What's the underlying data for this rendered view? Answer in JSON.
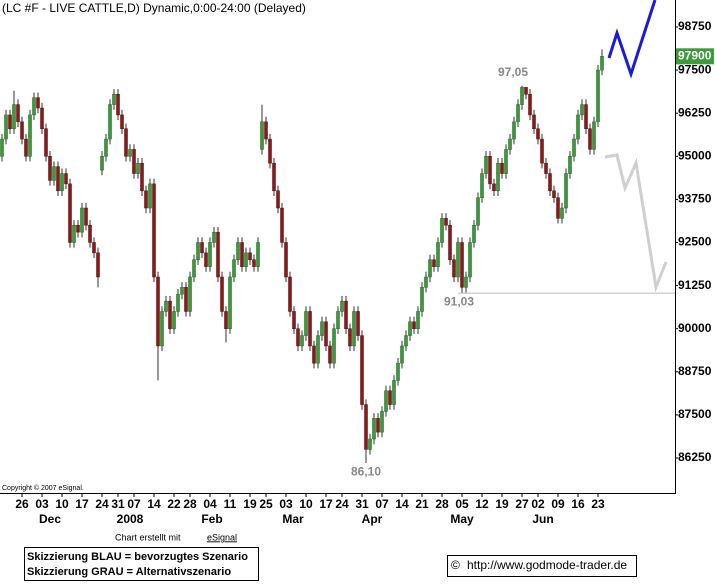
{
  "chart_data": {
    "type": "candlestick",
    "title": "(LC #F - LIVE CATTLE,D) Dynamic,0:00-24:00 (Delayed)",
    "up_color": "#3c9a3c",
    "down_color": "#8b1a1a",
    "xlim": [
      -0.5,
      168.25
    ],
    "ylim": [
      85235,
      99533
    ],
    "yticks": [
      86250,
      87500,
      88750,
      90000,
      91250,
      92500,
      93750,
      95000,
      96250,
      97500,
      98750
    ],
    "xticks": [
      {
        "value": 5,
        "label": "26"
      },
      {
        "value": 10,
        "label": "03"
      },
      {
        "value": 15,
        "label": "10"
      },
      {
        "value": 20,
        "label": "17"
      },
      {
        "value": 25,
        "label": "24"
      },
      {
        "value": 29,
        "label": "31"
      },
      {
        "value": 33,
        "label": "07"
      },
      {
        "value": 38,
        "label": "14"
      },
      {
        "value": 43,
        "label": "22"
      },
      {
        "value": 47,
        "label": "28"
      },
      {
        "value": 52,
        "label": "04"
      },
      {
        "value": 57,
        "label": "11"
      },
      {
        "value": 62,
        "label": "19"
      },
      {
        "value": 66,
        "label": "25"
      },
      {
        "value": 71,
        "label": "03"
      },
      {
        "value": 76,
        "label": "10"
      },
      {
        "value": 81,
        "label": "17"
      },
      {
        "value": 85,
        "label": "24"
      },
      {
        "value": 90,
        "label": "31"
      },
      {
        "value": 95,
        "label": "07"
      },
      {
        "value": 100,
        "label": "14"
      },
      {
        "value": 105,
        "label": "21"
      },
      {
        "value": 110,
        "label": "28"
      },
      {
        "value": 115,
        "label": "05"
      },
      {
        "value": 120,
        "label": "12"
      },
      {
        "value": 125,
        "label": "19"
      },
      {
        "value": 130,
        "label": "27"
      },
      {
        "value": 134,
        "label": "02"
      },
      {
        "value": 139,
        "label": "09"
      },
      {
        "value": 144,
        "label": "16"
      },
      {
        "value": 149,
        "label": "23"
      }
    ],
    "month_labels": [
      "Dec",
      "2008",
      "Feb",
      "Mar",
      "Apr",
      "May",
      "Jun"
    ],
    "open": [
      95000,
      95500,
      96200,
      95800,
      96500,
      96000,
      95500,
      95000,
      96200,
      96700,
      96400,
      95800,
      95000,
      94300,
      94700,
      94000,
      94500,
      94200,
      92500,
      93000,
      92800,
      93500,
      93000,
      92500,
      92200,
      94600,
      95000,
      95500,
      96500,
      96800,
      96200,
      95800,
      95000,
      95200,
      94500,
      94800,
      94000,
      93500,
      94200,
      91500,
      89500,
      90500,
      90800,
      90000,
      90500,
      91000,
      91200,
      90500,
      91500,
      92000,
      92500,
      92200,
      91800,
      92500,
      92800,
      91500,
      90500,
      90000,
      91500,
      92000,
      92500,
      91800,
      92200,
      92000,
      91800,
      95200,
      96000,
      95500,
      94800,
      94000,
      93500,
      92500,
      91500,
      90500,
      90000,
      89500,
      89800,
      90500,
      89500,
      89000,
      89800,
      90200,
      89500,
      89000,
      90000,
      90500,
      90800,
      90000,
      89500,
      90500,
      89800,
      87800,
      86500,
      86800,
      87400,
      87000,
      87600,
      88200,
      87800,
      88500,
      89000,
      89500,
      89800,
      90200,
      90000,
      90500,
      91200,
      91500,
      92000,
      91800,
      92500,
      93200,
      93000,
      92000,
      91500,
      92500,
      91200,
      91500,
      92500,
      93000,
      93800,
      94500,
      95000,
      94200,
      94000,
      94800,
      94500,
      95200,
      95500,
      96000,
      96500,
      97000,
      96800,
      96200,
      95800,
      95500,
      94800,
      94500,
      94000,
      93800,
      93200,
      93500,
      94500,
      95000,
      95500,
      96200,
      96500,
      95800,
      95200,
      96000,
      97500
    ],
    "high": [
      95650,
      96350,
      96350,
      96900,
      96650,
      96150,
      95650,
      96350,
      96850,
      96850,
      96550,
      95950,
      95150,
      94850,
      94850,
      94650,
      94650,
      94350,
      93150,
      93150,
      93650,
      93650,
      93150,
      92650,
      92350,
      95150,
      95650,
      96650,
      96950,
      96950,
      96350,
      95950,
      95350,
      95350,
      94950,
      94950,
      94150,
      94350,
      94350,
      91650,
      90650,
      90950,
      90950,
      90650,
      91150,
      91350,
      91350,
      91650,
      92150,
      92650,
      92650,
      92350,
      92650,
      92950,
      92950,
      91650,
      90650,
      91650,
      92150,
      92650,
      92650,
      92350,
      92350,
      92150,
      92650,
      96500,
      96150,
      95650,
      94950,
      94150,
      93650,
      92650,
      91650,
      90650,
      90150,
      89950,
      90650,
      90650,
      89650,
      89950,
      90350,
      90350,
      89650,
      90150,
      90650,
      90950,
      90950,
      90150,
      90650,
      90650,
      89950,
      87950,
      86950,
      87550,
      87550,
      87750,
      88350,
      88350,
      88650,
      89150,
      89650,
      89950,
      90350,
      90350,
      90650,
      91350,
      91650,
      92150,
      92150,
      92650,
      93350,
      93350,
      93150,
      92150,
      92650,
      92650,
      91650,
      92650,
      93150,
      93950,
      94650,
      95150,
      95150,
      94350,
      94950,
      94950,
      95350,
      95650,
      96150,
      96650,
      97050,
      96950,
      96950,
      96350,
      95950,
      95650,
      94950,
      94650,
      94150,
      93950,
      93650,
      94650,
      95150,
      95650,
      96350,
      96650,
      96650,
      95950,
      96150,
      97650,
      98100
    ],
    "low": [
      94850,
      95350,
      95650,
      95650,
      95850,
      95350,
      94850,
      94850,
      96050,
      96250,
      95650,
      94850,
      94150,
      94150,
      93850,
      93850,
      94050,
      92350,
      92350,
      92650,
      92650,
      92850,
      92350,
      92050,
      91200,
      94450,
      94850,
      95350,
      96350,
      96050,
      95650,
      94850,
      94850,
      94350,
      94350,
      93850,
      93350,
      93350,
      91350,
      88500,
      89350,
      90350,
      89850,
      89850,
      90350,
      90850,
      90350,
      90350,
      91350,
      91850,
      92050,
      91650,
      91650,
      92350,
      91350,
      90350,
      89600,
      89850,
      91350,
      91850,
      91650,
      91650,
      91850,
      91650,
      91650,
      95050,
      95350,
      94650,
      93850,
      93350,
      92350,
      91350,
      90350,
      89850,
      89350,
      89350,
      89650,
      89350,
      88850,
      88850,
      89650,
      89350,
      88850,
      88850,
      89850,
      90350,
      89850,
      89350,
      89350,
      89650,
      87650,
      86100,
      86350,
      86650,
      86850,
      86850,
      87450,
      87650,
      87650,
      88350,
      88850,
      89350,
      89650,
      89850,
      89850,
      90350,
      91050,
      91350,
      91650,
      91650,
      92350,
      92850,
      91850,
      91350,
      91350,
      91030,
      91050,
      91350,
      92350,
      92850,
      93650,
      94350,
      94050,
      93850,
      93850,
      94350,
      94350,
      95050,
      95350,
      95850,
      96350,
      96650,
      96050,
      95650,
      95350,
      94650,
      94350,
      93850,
      93650,
      93050,
      93050,
      93350,
      94350,
      94850,
      95350,
      96050,
      95650,
      95050,
      95050,
      95850,
      97350
    ],
    "close": [
      95500,
      96200,
      95800,
      96500,
      96000,
      95500,
      95000,
      96200,
      96700,
      96400,
      95800,
      95000,
      94300,
      94700,
      94000,
      94500,
      94200,
      92500,
      93000,
      92800,
      93500,
      93000,
      92500,
      92200,
      91500,
      95000,
      95500,
      96500,
      96800,
      96200,
      95800,
      95000,
      95200,
      94500,
      94800,
      94000,
      93500,
      94200,
      91500,
      89500,
      90500,
      90800,
      90000,
      90500,
      91000,
      91200,
      90500,
      91500,
      92000,
      92500,
      92200,
      91800,
      92500,
      92800,
      91500,
      90500,
      90000,
      91500,
      92000,
      92500,
      91800,
      92200,
      92000,
      91800,
      92500,
      96000,
      95500,
      94800,
      94000,
      93500,
      92500,
      91500,
      90500,
      90000,
      89500,
      89800,
      90500,
      89500,
      89000,
      89800,
      90200,
      89500,
      89000,
      90000,
      90500,
      90800,
      90000,
      89500,
      90500,
      89800,
      87800,
      86500,
      86800,
      87400,
      87000,
      87600,
      88200,
      87800,
      88500,
      89000,
      89500,
      89800,
      90200,
      90000,
      90500,
      91200,
      91500,
      92000,
      91800,
      92500,
      93200,
      93000,
      92000,
      91500,
      92500,
      91200,
      91500,
      92500,
      93000,
      93800,
      94500,
      95000,
      94200,
      94000,
      94800,
      94500,
      95200,
      95500,
      96000,
      96500,
      97000,
      96800,
      96200,
      95800,
      95500,
      94800,
      94500,
      94000,
      93800,
      93200,
      93500,
      94500,
      95000,
      95500,
      96200,
      96500,
      95800,
      95200,
      96000,
      97500,
      97900
    ],
    "annotations": [
      {
        "value": 97050,
        "label": "97,05"
      },
      {
        "value": 91030,
        "label": "91,03"
      },
      {
        "value": 86100,
        "label": "86,10"
      }
    ],
    "copyright": "Copyright © 2007 eSignal.",
    "credit_prefix": "Chart erstellt mit",
    "credit_link": "eSignal",
    "legend_box": [
      "Skizzierung BLAU = bevorzugtes Szenario",
      "Skizzierung GRAU = Alternativszenario"
    ],
    "url_mark": "©",
    "url": "http://www.godmode-trader.de"
  }
}
